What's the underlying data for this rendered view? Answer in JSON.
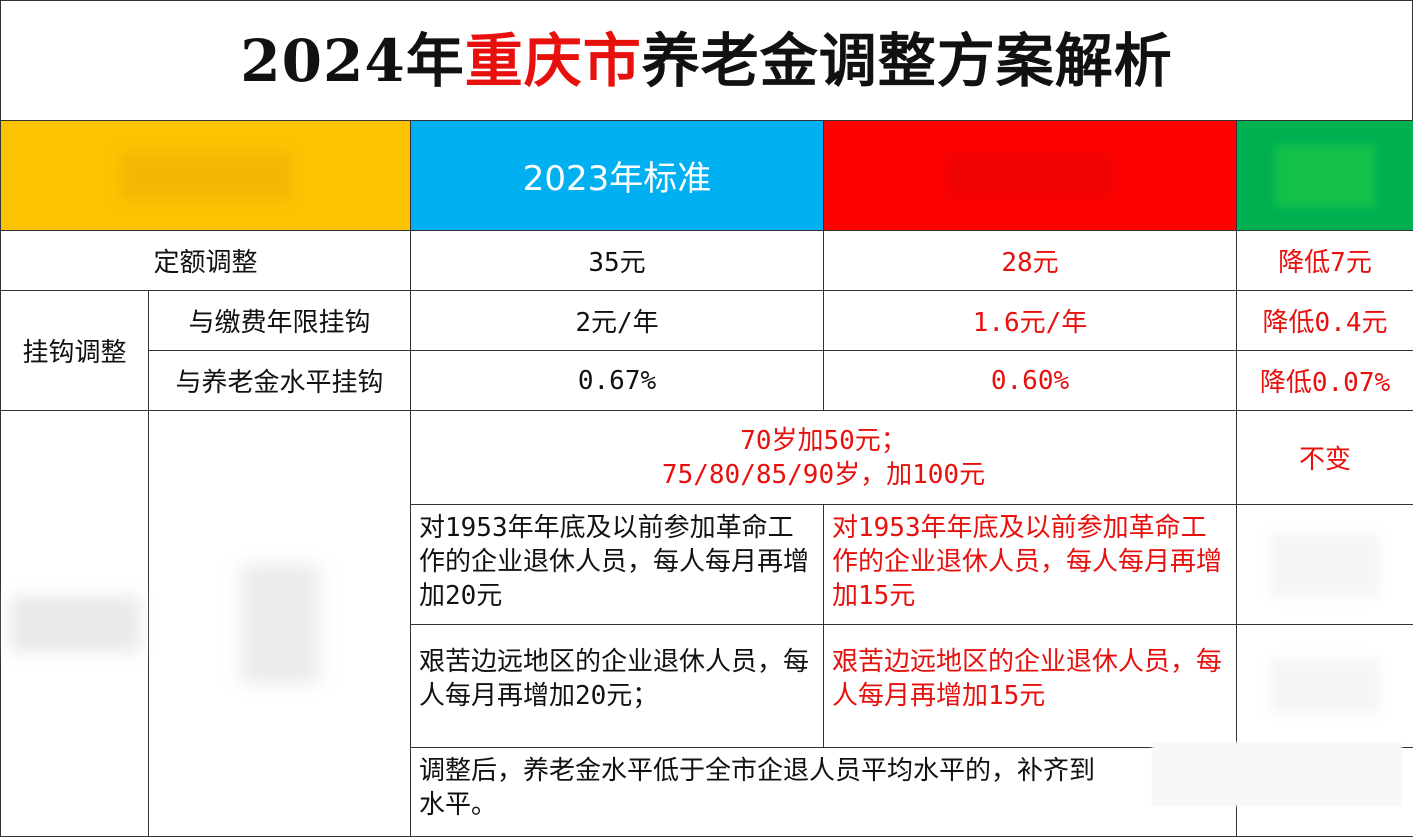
{
  "title": {
    "prefix": "2024年",
    "highlight": "重庆市",
    "suffix": "养老金调整方案解析"
  },
  "header": {
    "col1": "",
    "col2": "2023年标准",
    "col3": "",
    "col4": ""
  },
  "rows": {
    "fixed": {
      "label": "定额调整",
      "y2023": "35元",
      "y2024": "28元",
      "change": "降低7元"
    },
    "linked_label": "挂钩调整",
    "linked_years": {
      "label": "与缴费年限挂钩",
      "y2023": "2元/年",
      "y2024": "1.6元/年",
      "change": "降低0.4元"
    },
    "linked_level": {
      "label": "与养老金水平挂钩",
      "y2023": "0.67%",
      "y2024": "0.60%",
      "change": "降低0.07%"
    },
    "age": {
      "line1": "70岁加50元；",
      "line2": "75/80/85/90岁，加100元",
      "change": "不变"
    },
    "veteran": {
      "y2023": "对1953年年底及以前参加革命工作的企业退休人员，每人每月再增加20元",
      "y2024": "对1953年年底及以前参加革命工作的企业退休人员，每人每月再增加15元"
    },
    "remote": {
      "y2023": "艰苦边远地区的企业退休人员，每人每月再增加20元；",
      "y2024": "艰苦边远地区的企业退休人员，每人每月再增加15元"
    },
    "topup": "调整后，养老金水平低于全市企退人员平均水平的，补齐到",
    "topup_end": "水平。"
  },
  "watermark": "",
  "colors": {
    "orange": "#fbc302",
    "blue": "#01b0f1",
    "red": "#fe0101",
    "green": "#01b050",
    "accent_text": "#e8100c"
  }
}
